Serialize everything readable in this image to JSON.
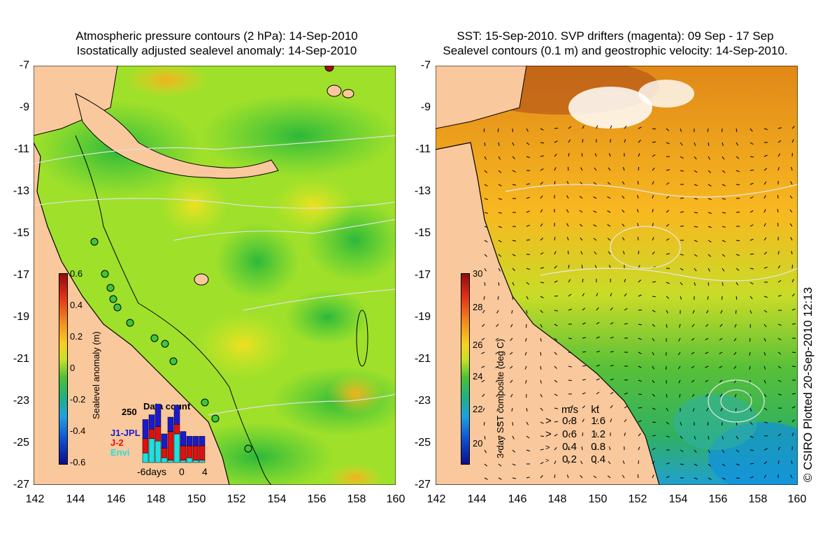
{
  "left_panel": {
    "title_line1": "Atmospheric pressure contours (2 hPa): 14-Sep-2010",
    "title_line2": "Isostatically adjusted sealevel anomaly: 14-Sep-2010",
    "colorbar_label": "Sealevel anomaly (m)",
    "colorbar_ticks": [
      "0.6",
      "0.4",
      "0.2",
      "0",
      "-0.2",
      "-0.4",
      "-0.6"
    ],
    "data_count_title": "Data count",
    "data_count_max": "250",
    "satellites": [
      {
        "name": "J1-JPL",
        "color": "#1a1acc"
      },
      {
        "name": "J-2",
        "color": "#e01010"
      },
      {
        "name": "Envi",
        "color": "#20e0e0"
      }
    ],
    "days_axis": [
      "-6days",
      "0",
      "4"
    ],
    "data_count_bars": [
      {
        "cyan": 0.2,
        "red": 0.3,
        "blue": 0.4
      },
      {
        "cyan": 0.5,
        "red": 0.2,
        "blue": 0.3
      },
      {
        "cyan": 0.45,
        "red": 0.3,
        "blue": 0.5
      },
      {
        "cyan": 0.1,
        "red": 0.2,
        "blue": 0.3
      },
      {
        "cyan": 0.05,
        "red": 0.6,
        "blue": 0.3
      },
      {
        "cyan": 0.6,
        "red": 0.2,
        "blue": 0.4
      },
      {
        "cyan": 0.05,
        "red": 0.3,
        "blue": 0.3
      },
      {
        "cyan": 0.1,
        "red": 0.25,
        "blue": 0.2
      },
      {
        "cyan": 0.05,
        "red": 0.3,
        "blue": 0.2
      },
      {
        "cyan": 0.05,
        "red": 0.3,
        "blue": 0.2
      }
    ]
  },
  "right_panel": {
    "title_line1": "SST: 15-Sep-2010. SVP drifters (magenta): 09 Sep - 17 Sep",
    "title_line2": "Sealevel contours (0.1 m) and geostrophic velocity: 14-Sep-2010.",
    "colorbar_label": "3-day SST composite (deg C)",
    "colorbar_ticks": [
      "30",
      "28",
      "26",
      "24",
      "22",
      "20"
    ],
    "velocity_legend": {
      "header_ms": "m/s",
      "header_kt": "kt",
      "rows": [
        {
          "ms": "0.8",
          "kt": "1.6"
        },
        {
          "ms": "0.6",
          "kt": "1.2"
        },
        {
          "ms": "0.4",
          "kt": "0.8"
        },
        {
          "ms": "0.2",
          "kt": "0.4"
        }
      ]
    }
  },
  "axes": {
    "lat_ticks": [
      "-7",
      "-9",
      "-11",
      "-13",
      "-15",
      "-17",
      "-19",
      "-21",
      "-23",
      "-25",
      "-27"
    ],
    "lon_ticks": [
      "142",
      "144",
      "146",
      "148",
      "150",
      "152",
      "154",
      "156",
      "158",
      "160"
    ]
  },
  "copyright": "© CSIRO Plotted 20-Sep-2010 12:13",
  "colors": {
    "land": "#f9c89c",
    "sla_green": "#3fc63a",
    "sla_lightgreen": "#8fe030",
    "sla_yellow": "#e8e82a",
    "sst_orange": "#f0a020",
    "sst_green": "#4ec040"
  }
}
